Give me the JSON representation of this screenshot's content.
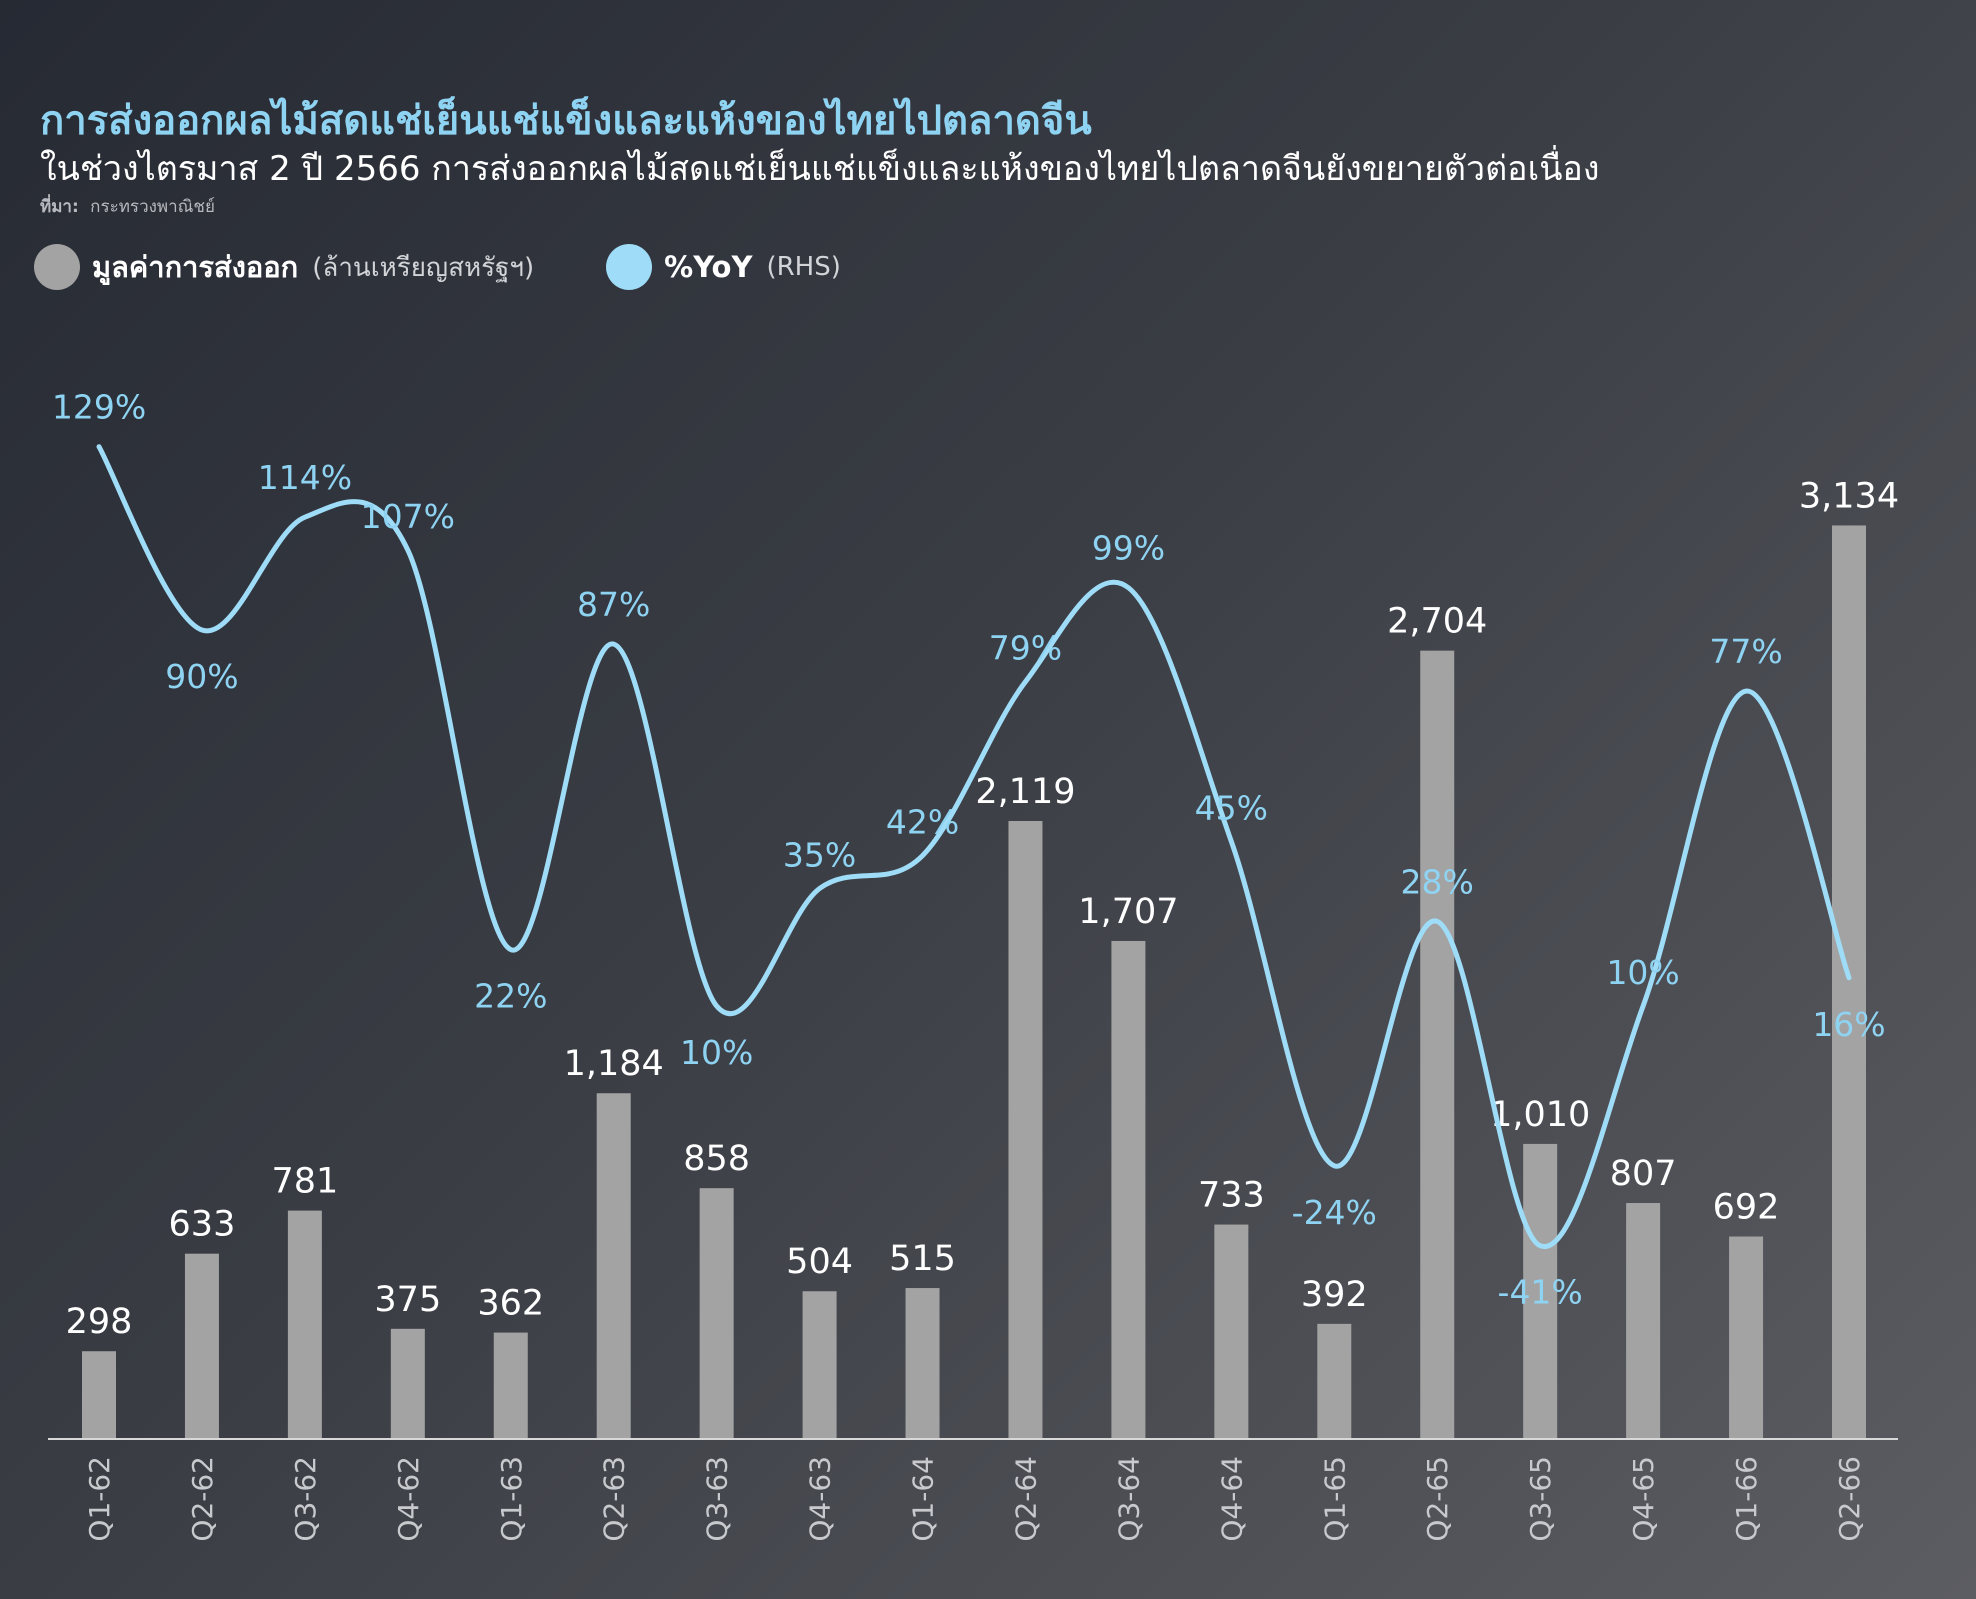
{
  "header": {
    "title": "การส่งออกผลไม้สดแช่เย็นแช่แข็งและแห้งของไทยไปตลาดจีน",
    "subtitle": "ในช่วงไตรมาส 2 ปี 2566 การส่งออกผลไม้สดแช่เย็นแช่แข็งและแห้งของไทยไปตลาดจีนยังขยายตัวต่อเนื่อง",
    "source_key": "ที่มา:",
    "source_value": "กระทรวงพาณิชย์"
  },
  "legend": [
    {
      "name": "มูลค่าการส่งออก",
      "unit": "(ล้านเหรียญสหรัฐฯ)",
      "color": "#a3a3a3"
    },
    {
      "name": "%YoY",
      "unit": "(RHS)",
      "color": "#9fdcf7"
    }
  ],
  "chart_data": {
    "type": "bar",
    "categories": [
      "Q1-62",
      "Q2-62",
      "Q3-62",
      "Q4-62",
      "Q1-63",
      "Q2-63",
      "Q3-63",
      "Q4-63",
      "Q1-64",
      "Q2-64",
      "Q3-64",
      "Q4-64",
      "Q1-65",
      "Q2-65",
      "Q3-65",
      "Q4-65",
      "Q1-66",
      "Q2-66"
    ],
    "series": [
      {
        "name": "มูลค่าการส่งออก",
        "kind": "bar",
        "axis": "left",
        "color": "#a3a3a3",
        "values": [
          298,
          633,
          781,
          375,
          362,
          1184,
          858,
          504,
          515,
          2119,
          1707,
          733,
          392,
          2704,
          1010,
          807,
          692,
          3134
        ],
        "labels": [
          "298",
          "633",
          "781",
          "375",
          "362",
          "1,184",
          "858",
          "504",
          "515",
          "2,119",
          "1,707",
          "733",
          "392",
          "2,704",
          "1,010",
          "807",
          "692",
          "3,134"
        ]
      },
      {
        "name": "%YoY",
        "kind": "line",
        "axis": "right",
        "color": "#9fdcf7",
        "values": [
          129,
          90,
          114,
          107,
          22,
          87,
          10,
          35,
          42,
          79,
          99,
          45,
          -24,
          28,
          -41,
          10,
          77,
          16
        ],
        "labels": [
          "129%",
          "90%",
          "114%",
          "107%",
          "22%",
          "87%",
          "10%",
          "35%",
          "42%",
          "79%",
          "99%",
          "45%",
          "-24%",
          "28%",
          "-41%",
          "10%",
          "77%",
          "16%"
        ]
      }
    ],
    "ylim_left": [
      0,
      3400
    ],
    "ylim_right": [
      -60,
      140
    ],
    "grid": false,
    "legend_position": "top-left"
  }
}
